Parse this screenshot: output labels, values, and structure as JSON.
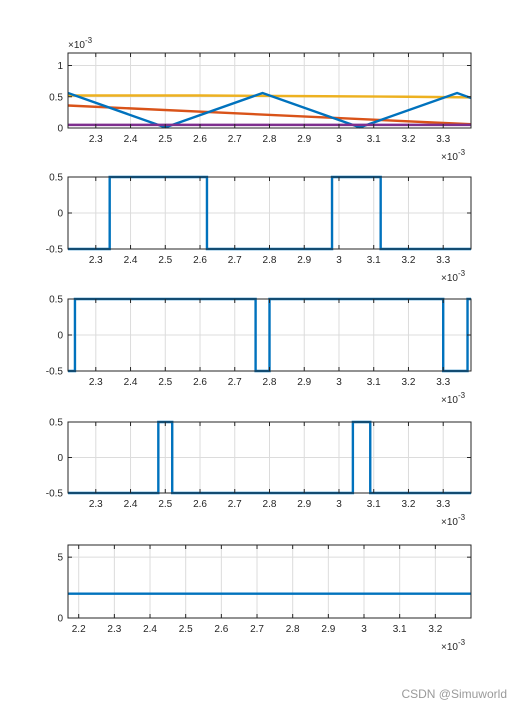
{
  "watermark": "CSDN @Simuworld",
  "chart_data": [
    {
      "type": "line",
      "xlim": [
        2.22,
        3.38
      ],
      "ylim": [
        0,
        1.2
      ],
      "xticks": [
        2.3,
        2.4,
        2.5,
        2.6,
        2.7,
        2.8,
        2.9,
        3.0,
        3.1,
        3.2,
        3.3
      ],
      "xtick_labels": [
        "2.3",
        "2.4",
        "2.5",
        "2.6",
        "2.7",
        "2.8",
        "2.9",
        "3",
        "3.1",
        "3.2",
        "3.3"
      ],
      "yticks": [
        0,
        0.5,
        1
      ],
      "ytick_labels": [
        "0",
        "0.5",
        "1"
      ],
      "y_exponent": "-3",
      "x_exponent": "-3",
      "grid": true,
      "series": [
        {
          "color": "#EDB120",
          "x": [
            2.22,
            2.6,
            2.9,
            3.2,
            3.38
          ],
          "y": [
            0.52,
            0.52,
            0.51,
            0.5,
            0.49
          ]
        },
        {
          "color": "#D95319",
          "x": [
            2.22,
            3.38
          ],
          "y": [
            0.36,
            0.06
          ]
        },
        {
          "color": "#0072BD",
          "x": [
            2.22,
            2.5,
            2.78,
            3.06,
            3.34,
            3.38
          ],
          "y": [
            0.56,
            0.01,
            0.56,
            0.01,
            0.56,
            0.48
          ]
        },
        {
          "color": "#7E2F8E",
          "x": [
            2.22,
            3.38
          ],
          "y": [
            0.05,
            0.05
          ]
        }
      ]
    },
    {
      "type": "line",
      "xlim": [
        2.22,
        3.38
      ],
      "ylim": [
        -0.5,
        0.5
      ],
      "xticks": [
        2.3,
        2.4,
        2.5,
        2.6,
        2.7,
        2.8,
        2.9,
        3.0,
        3.1,
        3.2,
        3.3
      ],
      "xtick_labels": [
        "2.3",
        "2.4",
        "2.5",
        "2.6",
        "2.7",
        "2.8",
        "2.9",
        "3",
        "3.1",
        "3.2",
        "3.3"
      ],
      "yticks": [
        -0.5,
        0,
        0.5
      ],
      "ytick_labels": [
        "-0.5",
        "0",
        "0.5"
      ],
      "x_exponent": "-3",
      "grid": true,
      "series": [
        {
          "color": "#0072BD",
          "x": [
            2.22,
            2.34,
            2.34,
            2.62,
            2.62,
            2.98,
            2.98,
            3.12,
            3.12,
            3.38
          ],
          "y": [
            -0.5,
            -0.5,
            0.5,
            0.5,
            -0.5,
            -0.5,
            0.5,
            0.5,
            -0.5,
            -0.5
          ]
        }
      ]
    },
    {
      "type": "line",
      "xlim": [
        2.22,
        3.38
      ],
      "ylim": [
        -0.5,
        0.5
      ],
      "xticks": [
        2.3,
        2.4,
        2.5,
        2.6,
        2.7,
        2.8,
        2.9,
        3.0,
        3.1,
        3.2,
        3.3
      ],
      "xtick_labels": [
        "2.3",
        "2.4",
        "2.5",
        "2.6",
        "2.7",
        "2.8",
        "2.9",
        "3",
        "3.1",
        "3.2",
        "3.3"
      ],
      "yticks": [
        -0.5,
        0,
        0.5
      ],
      "ytick_labels": [
        "-0.5",
        "0",
        "0.5"
      ],
      "x_exponent": "-3",
      "grid": true,
      "series": [
        {
          "color": "#0072BD",
          "x": [
            2.22,
            2.24,
            2.24,
            2.76,
            2.76,
            2.8,
            2.8,
            3.3,
            3.3,
            3.37,
            3.37,
            3.38
          ],
          "y": [
            -0.5,
            -0.5,
            0.5,
            0.5,
            -0.5,
            -0.5,
            0.5,
            0.5,
            -0.5,
            -0.5,
            0.5,
            0.5
          ]
        }
      ]
    },
    {
      "type": "line",
      "xlim": [
        2.22,
        3.38
      ],
      "ylim": [
        -0.5,
        0.5
      ],
      "xticks": [
        2.3,
        2.4,
        2.5,
        2.6,
        2.7,
        2.8,
        2.9,
        3.0,
        3.1,
        3.2,
        3.3
      ],
      "xtick_labels": [
        "2.3",
        "2.4",
        "2.5",
        "2.6",
        "2.7",
        "2.8",
        "2.9",
        "3",
        "3.1",
        "3.2",
        "3.3"
      ],
      "yticks": [
        -0.5,
        0,
        0.5
      ],
      "ytick_labels": [
        "-0.5",
        "0",
        "0.5"
      ],
      "x_exponent": "-3",
      "grid": true,
      "series": [
        {
          "color": "#0072BD",
          "x": [
            2.22,
            2.48,
            2.48,
            2.52,
            2.52,
            3.04,
            3.04,
            3.09,
            3.09,
            3.38
          ],
          "y": [
            -0.5,
            -0.5,
            0.5,
            0.5,
            -0.5,
            -0.5,
            0.5,
            0.5,
            -0.5,
            -0.5
          ]
        }
      ]
    },
    {
      "type": "line",
      "xlim": [
        2.17,
        3.3
      ],
      "ylim": [
        0,
        6
      ],
      "xticks": [
        2.2,
        2.3,
        2.4,
        2.5,
        2.6,
        2.7,
        2.8,
        2.9,
        3.0,
        3.1,
        3.2
      ],
      "xtick_labels": [
        "2.2",
        "2.3",
        "2.4",
        "2.5",
        "2.6",
        "2.7",
        "2.8",
        "2.9",
        "3",
        "3.1",
        "3.2"
      ],
      "yticks": [
        0,
        5
      ],
      "ytick_labels": [
        "0",
        "5"
      ],
      "x_exponent": "-3",
      "grid": true,
      "series": [
        {
          "color": "#0072BD",
          "x": [
            2.17,
            3.3
          ],
          "y": [
            2,
            2
          ]
        }
      ]
    }
  ]
}
